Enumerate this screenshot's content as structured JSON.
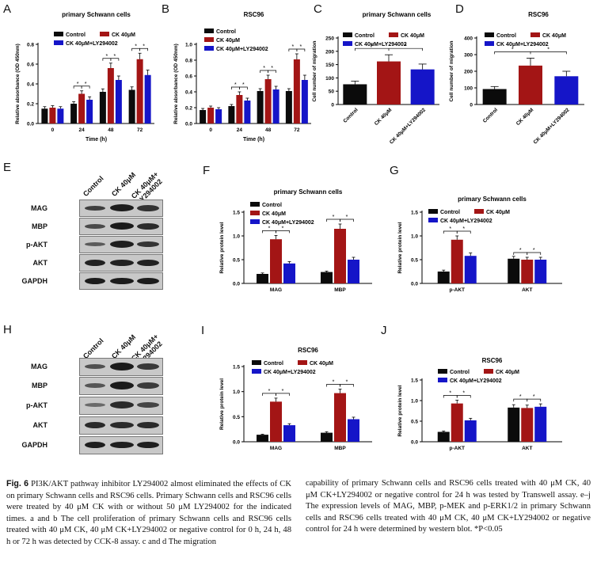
{
  "colors": {
    "control": "#0b0b0b",
    "ck": "#a31515",
    "ly": "#1515c8"
  },
  "panels": {
    "A": {
      "letter": "A",
      "title": "primary Schwann cells",
      "ylabel": "Relative absorbance (OD 450nm)",
      "xlabel": "Time (h)",
      "legend": [
        "Control",
        "CK 40μM",
        "CK 40μM+LY294002"
      ],
      "significance": "*"
    },
    "B": {
      "letter": "B",
      "title": "RSC96",
      "ylabel": "Relative absorbance (OD 450nm)",
      "xlabel": "Time (h)",
      "legend": [
        "Control",
        "CK 40μM",
        "CK 40μM+LY294002"
      ],
      "significance": "*"
    },
    "C": {
      "letter": "C",
      "title": "primary Schwann cells",
      "ylabel": "Cell number of migration",
      "legend": [
        "Control",
        "CK 40μM",
        "CK 40μM+LY294002"
      ],
      "significance": "*"
    },
    "D": {
      "letter": "D",
      "title": "RSC96",
      "ylabel": "Cell number of migration",
      "legend": [
        "Control",
        "CK 40μM",
        "CK 40μM+LY294002"
      ],
      "significance": "*"
    },
    "E": {
      "letter": "E",
      "lanes": [
        "Control",
        "CK 40μM",
        "CK 40μM+\nLY294002"
      ],
      "rows": [
        "MAG",
        "MBP",
        "p-AKT",
        "AKT",
        "GAPDH"
      ]
    },
    "F": {
      "letter": "F",
      "title": "primary Schwann cells",
      "ylabel": "Relative protein level",
      "legend": [
        "Control",
        "CK 40μM",
        "CK 40μM+LY294002"
      ],
      "significance": "*"
    },
    "G": {
      "letter": "G",
      "title": "primary Schwann cells",
      "ylabel": "Relative protein level",
      "legend": [
        "Control",
        "CK 40μM",
        "CK 40μM+LY294002"
      ],
      "significance": "*"
    },
    "H": {
      "letter": "H",
      "lanes": [
        "Control",
        "CK 40μM",
        "CK 40μM+\nLY294002"
      ],
      "rows": [
        "MAG",
        "MBP",
        "p-AKT",
        "AKT",
        "GAPDH"
      ]
    },
    "I": {
      "letter": "I",
      "title": "RSC96",
      "ylabel": "Relative protein level",
      "legend": [
        "Control",
        "CK 40μM",
        "CK 40μM+LY294002"
      ],
      "significance": "*"
    },
    "J": {
      "letter": "J",
      "title": "RSC96",
      "ylabel": "Relative protein level",
      "legend": [
        "Control",
        "CK 40μM",
        "CK 40μM+LY294002"
      ],
      "significance": "*"
    }
  },
  "chart_data": [
    {
      "id": "A",
      "type": "bar",
      "categories": [
        "0",
        "24",
        "48",
        "72"
      ],
      "ylim": [
        0,
        0.8
      ],
      "yticks": [
        0.0,
        0.2,
        0.4,
        0.6,
        0.8
      ],
      "series": [
        {
          "name": "Control",
          "values": [
            0.15,
            0.2,
            0.32,
            0.34
          ],
          "errors": [
            0.02,
            0.02,
            0.03,
            0.03
          ]
        },
        {
          "name": "CK 40μM",
          "values": [
            0.16,
            0.3,
            0.56,
            0.65
          ],
          "errors": [
            0.02,
            0.03,
            0.05,
            0.06
          ]
        },
        {
          "name": "CK 40μM+LY294002",
          "values": [
            0.15,
            0.24,
            0.44,
            0.49
          ],
          "errors": [
            0.02,
            0.03,
            0.04,
            0.05
          ]
        }
      ]
    },
    {
      "id": "B",
      "type": "bar",
      "categories": [
        "0",
        "24",
        "48",
        "72"
      ],
      "ylim": [
        0,
        1.0
      ],
      "yticks": [
        0.0,
        0.2,
        0.4,
        0.6,
        0.8,
        1.0
      ],
      "series": [
        {
          "name": "Control",
          "values": [
            0.17,
            0.22,
            0.41,
            0.41
          ],
          "errors": [
            0.02,
            0.02,
            0.03,
            0.03
          ]
        },
        {
          "name": "CK 40μM",
          "values": [
            0.2,
            0.36,
            0.56,
            0.81
          ],
          "errors": [
            0.02,
            0.04,
            0.05,
            0.07
          ]
        },
        {
          "name": "CK 40μM+LY294002",
          "values": [
            0.18,
            0.29,
            0.43,
            0.55
          ],
          "errors": [
            0.02,
            0.03,
            0.04,
            0.06
          ]
        }
      ]
    },
    {
      "id": "C",
      "type": "bar",
      "categories": [
        "Control",
        "CK 40μM",
        "CK 40μM+LY294002"
      ],
      "ylim": [
        0,
        250
      ],
      "yticks": [
        0,
        50,
        100,
        150,
        200,
        250
      ],
      "values": [
        76,
        162,
        132
      ],
      "errors": [
        12,
        25,
        20
      ]
    },
    {
      "id": "D",
      "type": "bar",
      "categories": [
        "Control",
        "CK 40μM",
        "CK 40μM+LY294002"
      ],
      "ylim": [
        0,
        400
      ],
      "yticks": [
        0,
        100,
        200,
        300,
        400
      ],
      "values": [
        93,
        234,
        170
      ],
      "errors": [
        15,
        45,
        30
      ]
    },
    {
      "id": "F",
      "type": "bar",
      "categories": [
        "MAG",
        "MBP"
      ],
      "ylim": [
        0,
        1.5
      ],
      "yticks": [
        0.0,
        0.5,
        1.0,
        1.5
      ],
      "series": [
        {
          "name": "Control",
          "values": [
            0.2,
            0.24
          ],
          "errors": [
            0.02,
            0.02
          ]
        },
        {
          "name": "CK 40μM",
          "values": [
            0.93,
            1.15
          ],
          "errors": [
            0.08,
            0.1
          ]
        },
        {
          "name": "CK 40μM+LY294002",
          "values": [
            0.42,
            0.5
          ],
          "errors": [
            0.04,
            0.05
          ]
        }
      ]
    },
    {
      "id": "G",
      "type": "bar",
      "categories": [
        "p-AKT",
        "AKT"
      ],
      "ylim": [
        0,
        1.5
      ],
      "yticks": [
        0.0,
        0.5,
        1.0,
        1.5
      ],
      "series": [
        {
          "name": "Control",
          "values": [
            0.25,
            0.52
          ],
          "errors": [
            0.03,
            0.05
          ]
        },
        {
          "name": "CK 40μM",
          "values": [
            0.92,
            0.5
          ],
          "errors": [
            0.08,
            0.05
          ]
        },
        {
          "name": "CK 40μM+LY294002",
          "values": [
            0.58,
            0.5
          ],
          "errors": [
            0.06,
            0.05
          ]
        }
      ]
    },
    {
      "id": "I",
      "type": "bar",
      "categories": [
        "MAG",
        "MBP"
      ],
      "ylim": [
        0,
        1.5
      ],
      "yticks": [
        0.0,
        0.5,
        1.0,
        1.5
      ],
      "series": [
        {
          "name": "Control",
          "values": [
            0.14,
            0.18
          ],
          "errors": [
            0.01,
            0.02
          ]
        },
        {
          "name": "CK 40μM",
          "values": [
            0.8,
            0.97
          ],
          "errors": [
            0.07,
            0.08
          ]
        },
        {
          "name": "CK 40μM+LY294002",
          "values": [
            0.33,
            0.45
          ],
          "errors": [
            0.03,
            0.04
          ]
        }
      ]
    },
    {
      "id": "J",
      "type": "bar",
      "categories": [
        "p-AKT",
        "AKT"
      ],
      "ylim": [
        0,
        1.5
      ],
      "yticks": [
        0.0,
        0.5,
        1.0,
        1.5
      ],
      "series": [
        {
          "name": "Control",
          "values": [
            0.24,
            0.83
          ],
          "errors": [
            0.02,
            0.07
          ]
        },
        {
          "name": "CK 40μM",
          "values": [
            0.93,
            0.82
          ],
          "errors": [
            0.08,
            0.07
          ]
        },
        {
          "name": "CK 40μM+LY294002",
          "values": [
            0.52,
            0.85
          ],
          "errors": [
            0.05,
            0.07
          ]
        }
      ]
    }
  ],
  "caption": {
    "fig_label": "Fig. 6",
    "left_text": "PI3K/AKT pathway inhibitor LY294002 almost eliminated the effects of CK on primary Schwann cells and RSC96 cells. Primary Schwann cells and RSC96 cells were treated by 40 μM CK with or without 50 μM LY294002 for the indicated times. a and b The cell proliferation of primary Schwann cells and RSC96 cells treated with 40 μM CK, 40 μM CK+LY294002 or negative control for 0 h, 24 h, 48 h or 72 h was detected by CCK-8 assay. c and d The migration",
    "right_text": "capability of primary Schwann cells and RSC96 cells treated with 40 μM CK, 40 μM CK+LY294002 or negative control for 24 h was tested by Transwell assay. e–j The expression levels of MAG, MBP, p-MEK and p-ERK1/2 in primary Schwann cells and RSC96 cells treated with 40 μM CK, 40 μM CK+LY294002 or negative control for 24 h were determined by western blot. *P<0.05"
  }
}
